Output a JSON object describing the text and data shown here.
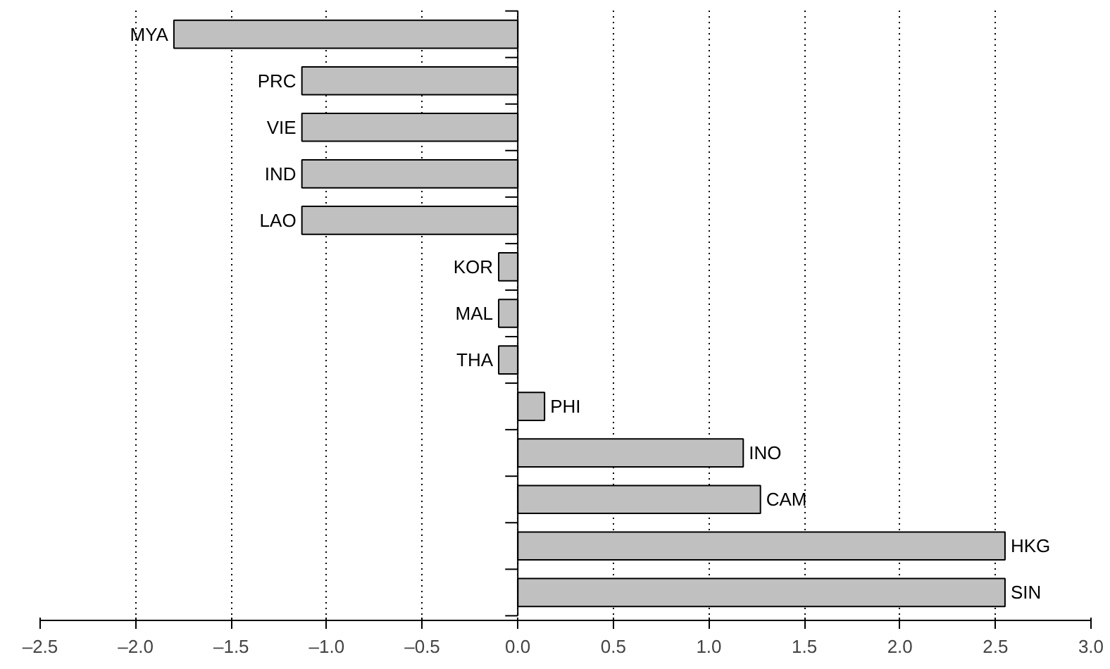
{
  "chart_data": {
    "type": "bar",
    "orientation": "horizontal",
    "categories": [
      "MYA",
      "PRC",
      "VIE",
      "IND",
      "LAO",
      "KOR",
      "MAL",
      "THA",
      "PHI",
      "INO",
      "CAM",
      "HKG",
      "SIN"
    ],
    "values": [
      -1.8,
      -1.13,
      -1.13,
      -1.13,
      -1.13,
      -0.1,
      -0.1,
      -0.1,
      0.14,
      1.18,
      1.27,
      2.55,
      2.55
    ],
    "color": "#c0c0c0",
    "xlim": [
      -2.5,
      3.0
    ],
    "xticks": [
      {
        "value": -2.5,
        "label": "–2.5"
      },
      {
        "value": -2.0,
        "label": "–2.0"
      },
      {
        "value": -1.5,
        "label": "–1.5"
      },
      {
        "value": -1.0,
        "label": "–1.0"
      },
      {
        "value": -0.5,
        "label": "–0.5"
      },
      {
        "value": 0,
        "label": "0.0"
      },
      {
        "value": 0.5,
        "label": "0.5"
      },
      {
        "value": 1.0,
        "label": "1.0"
      },
      {
        "value": 1.5,
        "label": "1.5"
      },
      {
        "value": 2.0,
        "label": "2.0"
      },
      {
        "value": 2.5,
        "label": "2.5"
      },
      {
        "value": 3.0,
        "label": "3.0"
      }
    ],
    "grid": "x"
  }
}
